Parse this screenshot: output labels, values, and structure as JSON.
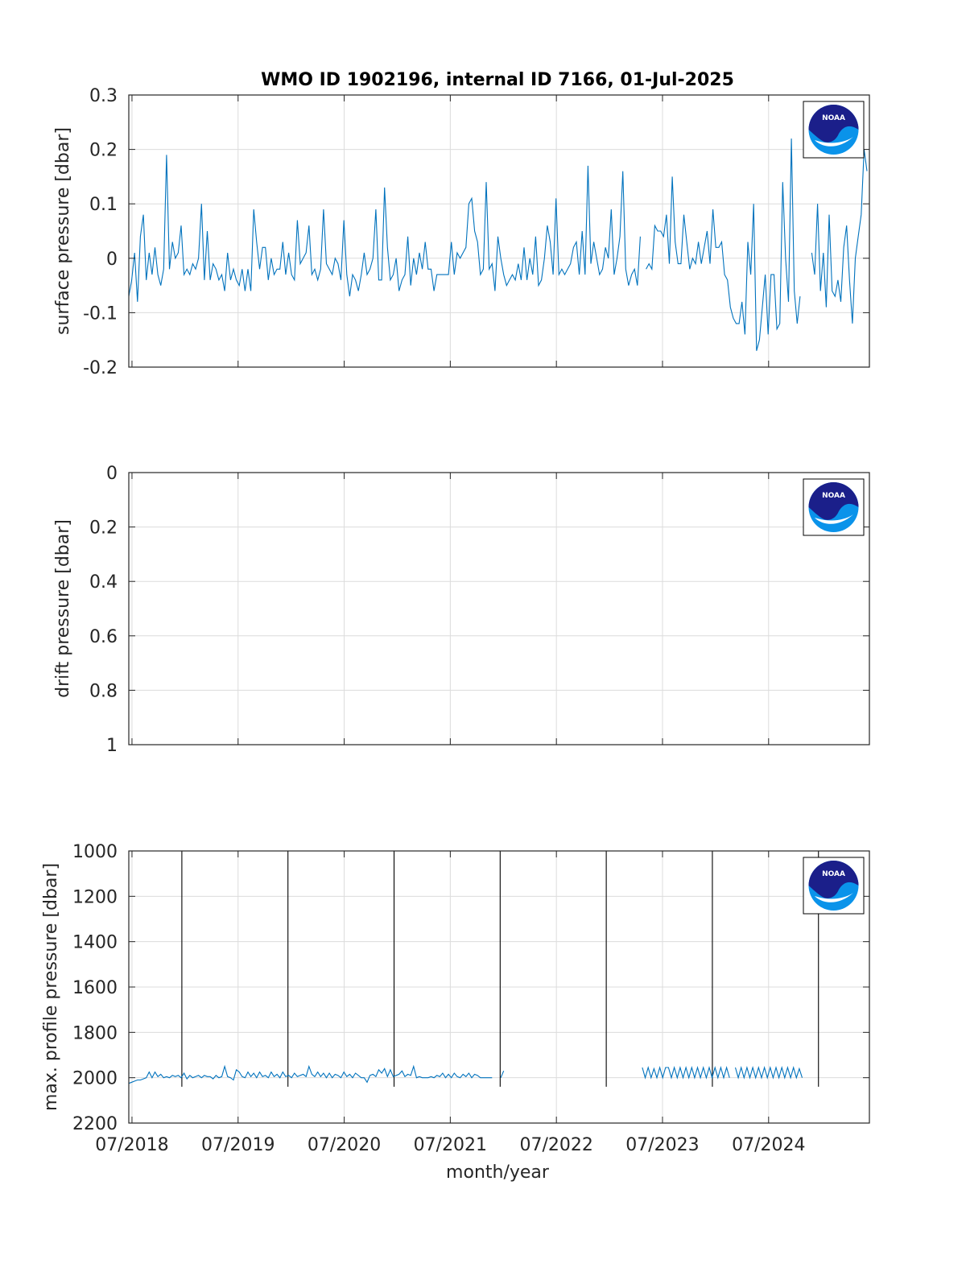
{
  "figure": {
    "title": "WMO ID 1902196, internal ID 7166, 01-Jul-2025",
    "xlabel": "month/year",
    "x_tick_labels": [
      "07/2018",
      "07/2019",
      "07/2020",
      "07/2021",
      "07/2022",
      "07/2023",
      "07/2024"
    ]
  },
  "colors": {
    "series": "#0072bd",
    "markers": "#000000",
    "noaa_dark": "#1b1f8a",
    "noaa_light": "#0a93ea"
  },
  "logo": {
    "text": "NOAA"
  },
  "chart_data": [
    {
      "type": "line",
      "ylabel": "surface pressure [dbar]",
      "xlim": [
        2018.47,
        2025.45
      ],
      "ylim": [
        -0.2,
        0.3
      ],
      "y_reversed": false,
      "y_ticks": [
        -0.2,
        -0.1,
        0,
        0.1,
        0.2,
        0.3
      ],
      "y_tick_labels": [
        "-0.2",
        "-0.1",
        "0",
        "0.1",
        "0.2",
        "0.3"
      ],
      "grid": true,
      "series": [
        {
          "x_start": 2018.47,
          "x_step": 0.02739,
          "values": [
            -0.07,
            -0.04,
            0.01,
            -0.08,
            0.04,
            0.08,
            -0.04,
            0.01,
            -0.03,
            0.02,
            -0.03,
            -0.05,
            -0.02,
            0.19,
            -0.02,
            0.03,
            0.0,
            0.01,
            0.06,
            -0.03,
            -0.02,
            -0.03,
            -0.01,
            -0.02,
            0.0,
            0.1,
            -0.04,
            0.05,
            -0.04,
            -0.01,
            -0.02,
            -0.04,
            -0.03,
            -0.06,
            0.01,
            -0.04,
            -0.02,
            -0.04,
            -0.05,
            -0.02,
            -0.06,
            -0.02,
            -0.06,
            0.09,
            0.03,
            -0.02,
            0.02,
            0.02,
            -0.04,
            0.0,
            -0.03,
            -0.02,
            -0.02,
            0.03,
            -0.03,
            0.01,
            -0.03,
            -0.04,
            0.07,
            -0.01,
            0.0,
            0.01,
            0.06,
            -0.03,
            -0.02,
            -0.04,
            -0.02,
            0.09,
            -0.01,
            -0.02,
            -0.03,
            0.0,
            -0.01,
            -0.04,
            0.07,
            -0.03,
            -0.07,
            -0.03,
            -0.04,
            -0.06,
            -0.03,
            0.01,
            -0.03,
            -0.02,
            0.0,
            0.09,
            -0.04,
            -0.04,
            0.13,
            0.02,
            -0.04,
            -0.03,
            0.0,
            -0.06,
            -0.04,
            -0.03,
            0.04,
            -0.05,
            0.0,
            -0.03,
            0.01,
            -0.02,
            0.03,
            -0.02,
            -0.02,
            -0.06,
            -0.03,
            -0.03,
            -0.03,
            -0.03,
            -0.03,
            0.03,
            -0.03,
            0.01,
            0.0,
            0.01,
            0.02,
            0.1,
            0.11,
            0.05,
            0.03,
            -0.03,
            -0.02,
            0.14,
            -0.02,
            -0.01,
            -0.06,
            0.04,
            0.0,
            -0.03,
            -0.05,
            -0.04,
            -0.03,
            -0.04,
            -0.01,
            -0.04,
            0.02,
            -0.04,
            0.0,
            -0.03,
            0.04,
            -0.05,
            -0.04,
            0.0,
            0.06,
            0.03,
            -0.03,
            0.11,
            -0.03,
            -0.02,
            -0.03,
            -0.02,
            -0.01,
            0.02,
            0.03,
            -0.03,
            0.05,
            -0.03,
            0.17,
            -0.01,
            0.03,
            0.0,
            -0.03,
            -0.02,
            0.02,
            0.0,
            0.09,
            -0.03,
            0.0,
            0.04,
            0.16,
            -0.02,
            -0.05,
            -0.03,
            -0.02,
            -0.05,
            0.04,
            null,
            -0.02,
            -0.01,
            -0.02,
            0.06,
            0.05,
            0.05,
            0.04,
            0.08,
            -0.01,
            0.15,
            0.03,
            -0.01,
            -0.01,
            0.08,
            0.03,
            -0.02,
            0.0,
            -0.01,
            0.03,
            -0.01,
            0.02,
            0.05,
            -0.01,
            0.09,
            0.02,
            0.02,
            0.03,
            -0.03,
            -0.04,
            -0.09,
            -0.11,
            -0.12,
            -0.12,
            -0.08,
            -0.14,
            0.03,
            -0.03,
            0.1,
            -0.17,
            -0.15,
            -0.09,
            -0.03,
            -0.14,
            -0.03,
            -0.03,
            -0.13,
            -0.12,
            0.14,
            0.0,
            -0.08,
            0.22,
            -0.06,
            -0.12,
            -0.07,
            null,
            null,
            null,
            0.01,
            -0.03,
            0.1,
            -0.06,
            0.01,
            -0.09,
            0.08,
            -0.06,
            -0.07,
            -0.04,
            -0.08,
            0.02,
            0.06,
            -0.04,
            -0.12,
            0.0,
            0.04,
            0.08,
            0.2,
            0.16,
            0.14,
            0.08
          ]
        }
      ]
    },
    {
      "type": "line",
      "ylabel": "drift pressure [dbar]",
      "xlim": [
        2018.47,
        2025.45
      ],
      "ylim": [
        0,
        1
      ],
      "y_reversed": true,
      "y_ticks": [
        0,
        0.2,
        0.4,
        0.6,
        0.8,
        1
      ],
      "y_tick_labels": [
        "0",
        "0.2",
        "0.4",
        "0.6",
        "0.8",
        "1"
      ],
      "grid": true,
      "series": []
    },
    {
      "type": "line",
      "ylabel": "max. profile pressure [dbar]",
      "xlim": [
        2018.47,
        2025.45
      ],
      "ylim": [
        1000,
        2200
      ],
      "y_reversed": true,
      "y_ticks": [
        1000,
        1200,
        1400,
        1600,
        1800,
        2000,
        2200
      ],
      "y_tick_labels": [
        "1000",
        "1200",
        "1400",
        "1600",
        "1800",
        "2000",
        "2200"
      ],
      "grid": true,
      "vertical_markers_x": [
        2018.97,
        2019.97,
        2020.97,
        2021.97,
        2022.97,
        2023.97,
        2024.97
      ],
      "vertical_markers_y_range": [
        1000,
        2040
      ],
      "series": [
        {
          "x_start": 2018.47,
          "x_step": 0.02739,
          "values": [
            2025,
            2020,
            2015,
            2010,
            2010,
            2005,
            2000,
            1975,
            2000,
            1975,
            1995,
            1985,
            2000,
            1995,
            2000,
            1990,
            1995,
            1990,
            2000,
            1980,
            2005,
            1990,
            2000,
            1995,
            1990,
            2000,
            1990,
            1995,
            1995,
            2005,
            1990,
            2000,
            1995,
            1950,
            1995,
            2000,
            2010,
            1965,
            1975,
            1995,
            2000,
            1975,
            1995,
            1980,
            2000,
            1975,
            1995,
            1990,
            2000,
            1975,
            1995,
            1985,
            2000,
            1975,
            1995,
            1990,
            2000,
            1980,
            1995,
            1990,
            1985,
            1995,
            1950,
            1985,
            1995,
            1975,
            1995,
            1980,
            2000,
            1980,
            2000,
            1985,
            1990,
            2000,
            1975,
            1995,
            1985,
            2000,
            1980,
            1990,
            2000,
            2000,
            2020,
            1990,
            1985,
            1995,
            1965,
            1980,
            1960,
            1995,
            1965,
            1995,
            1990,
            1985,
            1970,
            1995,
            1985,
            1990,
            1950,
            2000,
            1995,
            2000,
            2000,
            2000,
            1995,
            2000,
            1990,
            1995,
            1980,
            2000,
            1985,
            2000,
            1980,
            1995,
            2000,
            1985,
            1995,
            1980,
            2000,
            1985,
            1990,
            2000,
            2000,
            2000,
            2000,
            2000,
            null,
            null,
            2000,
            1970
          ]
        },
        {
          "x_start": 2023.31,
          "x_step": 0.02739,
          "values": [
            1955,
            2000,
            1955,
            2000,
            1960,
            2000,
            1955,
            2000,
            1955,
            1955,
            2000,
            1955,
            2000,
            1955,
            2000,
            1955,
            2000,
            1955,
            2000,
            1955,
            2000,
            1955,
            2000,
            1955,
            2000,
            1955,
            2000,
            1955,
            2000,
            1955,
            2000,
            null,
            1955,
            2000,
            1955,
            2000,
            1955,
            2000,
            1955,
            2000,
            1955,
            2000,
            1955,
            2000,
            1955,
            2000,
            1955,
            2000,
            1955,
            2000,
            1955,
            2000,
            1955,
            2000,
            1960,
            2000
          ]
        }
      ]
    }
  ]
}
